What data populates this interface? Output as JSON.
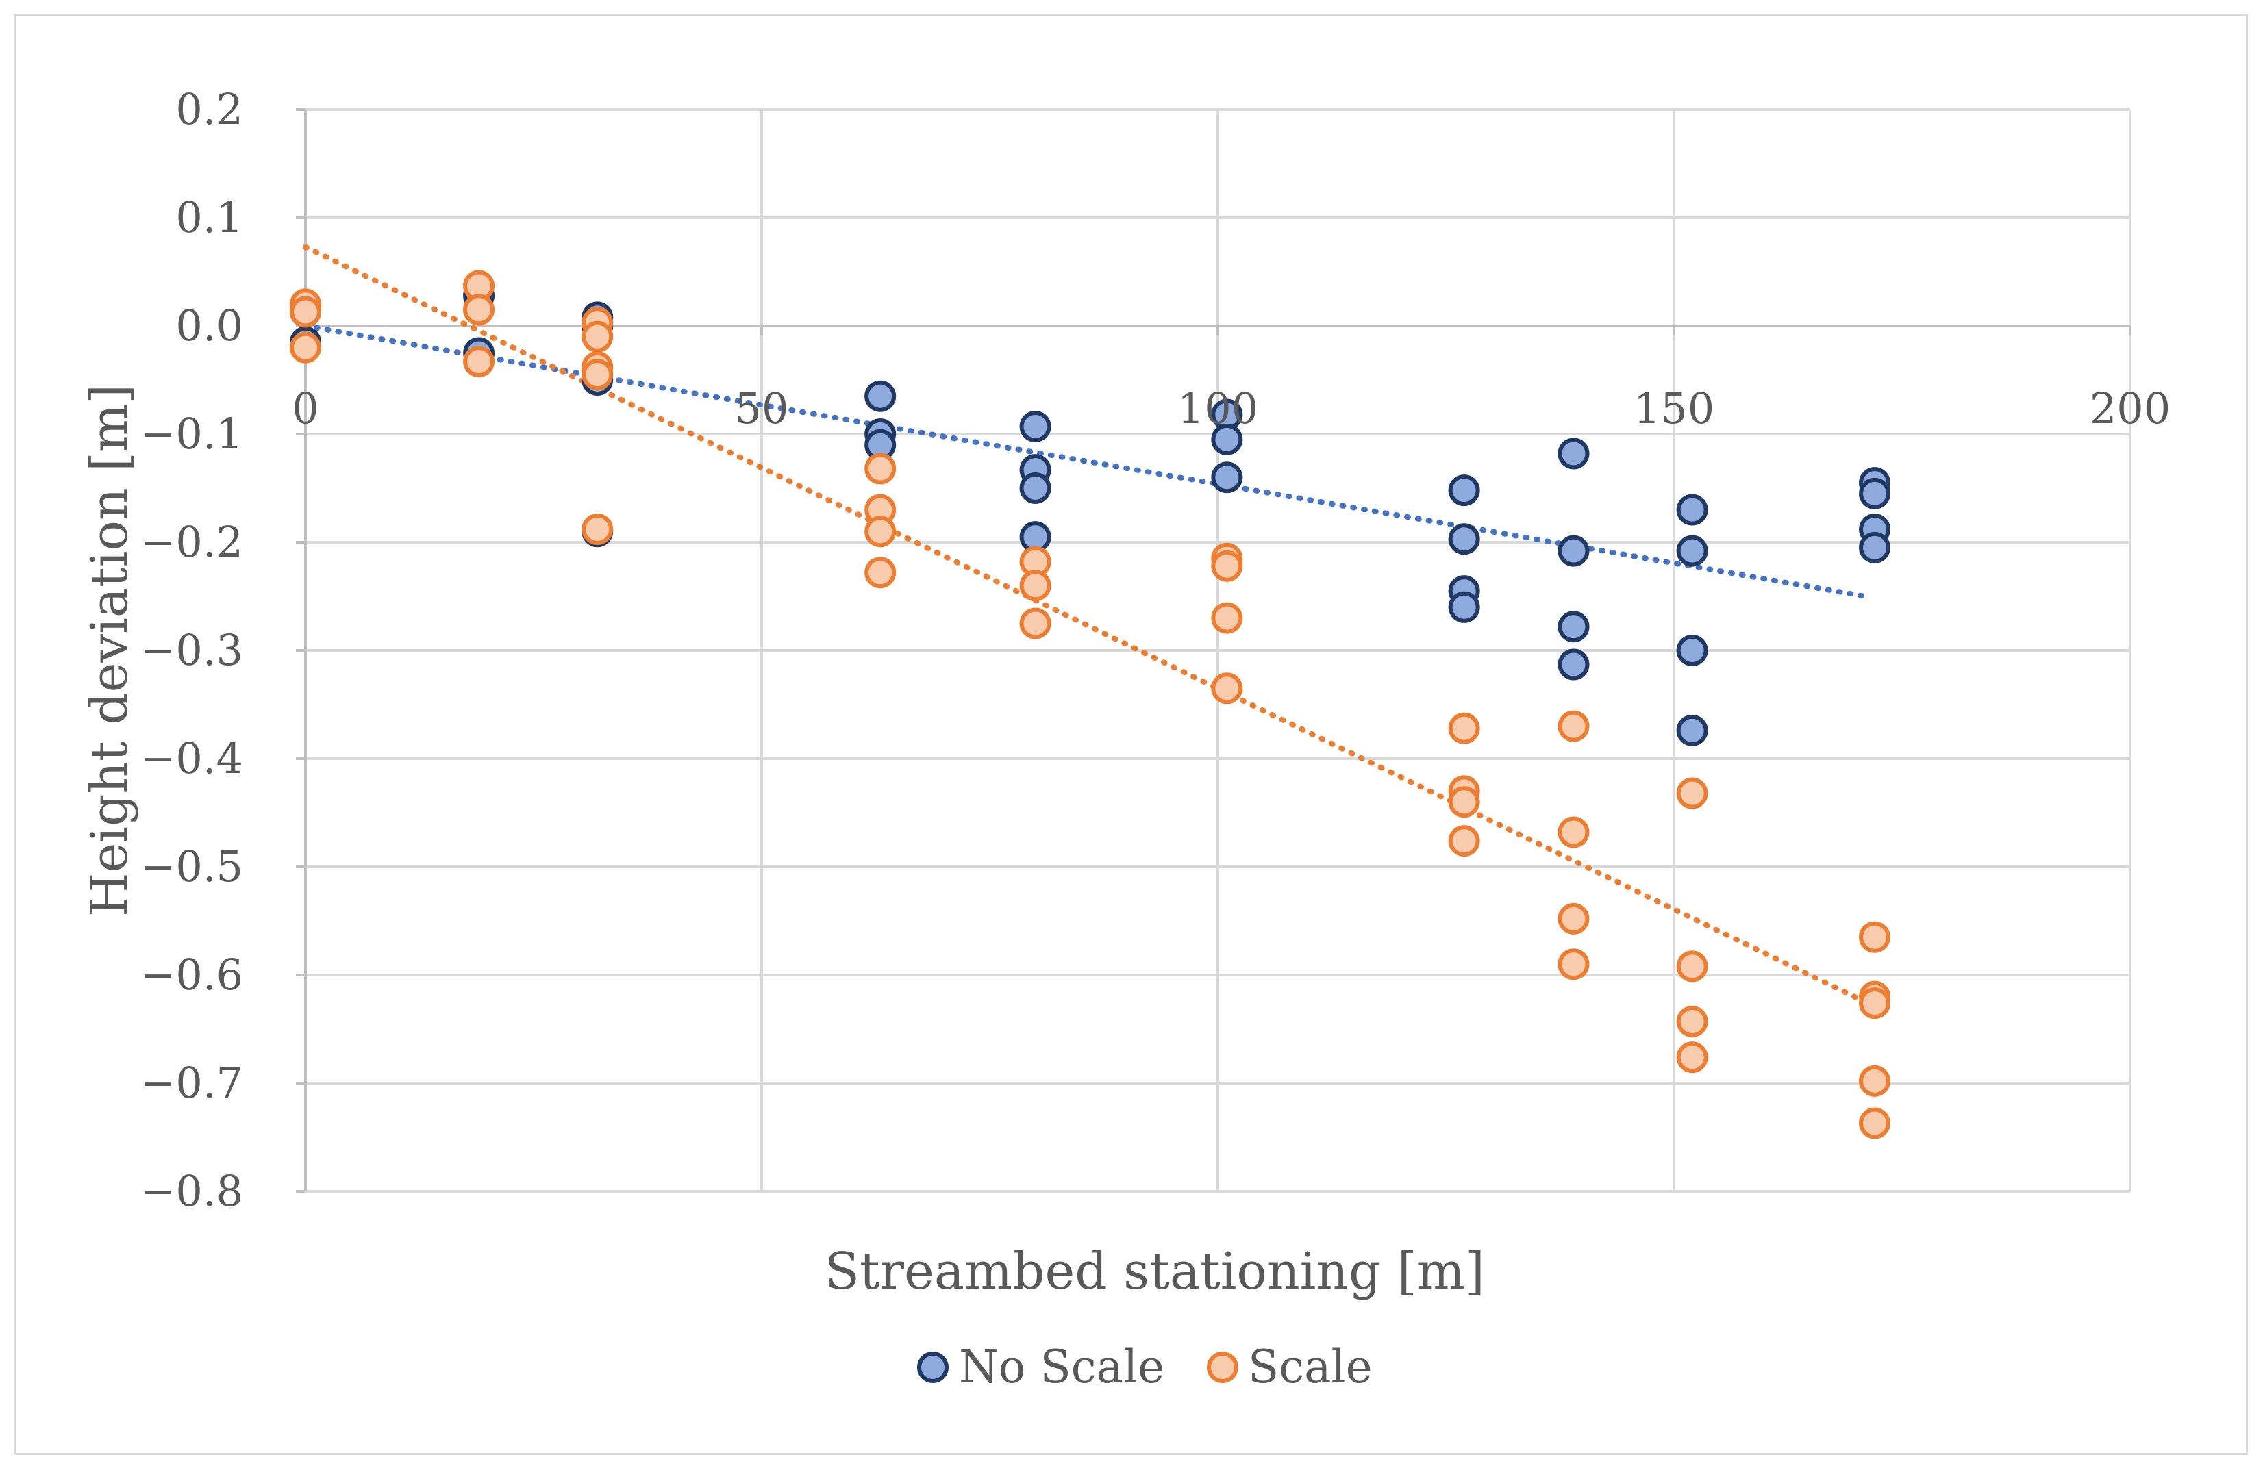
{
  "chart_data": {
    "type": "scatter",
    "title": "",
    "xlabel": "Streambed stationing [m]",
    "ylabel": "Height deviation [m]",
    "xlim": [
      0,
      200
    ],
    "ylim": [
      -0.8,
      0.2
    ],
    "x_ticks": [
      "0",
      "50",
      "100",
      "150",
      "200"
    ],
    "x_tick_values": [
      0,
      50,
      100,
      150,
      200
    ],
    "y_ticks": [
      "0.2",
      "0.1",
      "0.0",
      "−0.1",
      "−0.2",
      "−0.3",
      "−0.4",
      "−0.5",
      "−0.6",
      "−0.7",
      "−0.8"
    ],
    "y_tick_values": [
      0.2,
      0.1,
      0.0,
      -0.1,
      -0.2,
      -0.3,
      -0.4,
      -0.5,
      -0.6,
      -0.7,
      -0.8
    ],
    "grid": true,
    "legend_position": "bottom",
    "series": [
      {
        "name": "No Scale",
        "color": "#8faadc",
        "edge_color": "#1f3864",
        "trendline_color": "#4472c4",
        "trendline": {
          "x": [
            0,
            171
          ],
          "y": [
            0.0,
            -0.25
          ]
        },
        "points": [
          [
            0,
            -0.015
          ],
          [
            0,
            0.013
          ],
          [
            19,
            0.028
          ],
          [
            19,
            -0.025
          ],
          [
            32,
            0.008
          ],
          [
            32,
            0.0
          ],
          [
            32,
            -0.05
          ],
          [
            32,
            -0.19
          ],
          [
            63,
            -0.065
          ],
          [
            63,
            -0.1
          ],
          [
            63,
            -0.11
          ],
          [
            80,
            -0.093
          ],
          [
            80,
            -0.133
          ],
          [
            80,
            -0.15
          ],
          [
            80,
            -0.195
          ],
          [
            101,
            -0.082
          ],
          [
            101,
            -0.105
          ],
          [
            101,
            -0.14
          ],
          [
            127,
            -0.152
          ],
          [
            127,
            -0.197
          ],
          [
            127,
            -0.245
          ],
          [
            127,
            -0.26
          ],
          [
            139,
            -0.118
          ],
          [
            139,
            -0.208
          ],
          [
            139,
            -0.278
          ],
          [
            139,
            -0.313
          ],
          [
            152,
            -0.17
          ],
          [
            152,
            -0.208
          ],
          [
            152,
            -0.3
          ],
          [
            152,
            -0.374
          ],
          [
            172,
            -0.145
          ],
          [
            172,
            -0.155
          ],
          [
            172,
            -0.188
          ],
          [
            172,
            -0.205
          ]
        ]
      },
      {
        "name": "Scale",
        "color": "#f8cbad",
        "edge_color": "#ed7d31",
        "trendline_color": "#ed7d31",
        "trendline": {
          "x": [
            0,
            171
          ],
          "y": [
            0.073,
            -0.625
          ]
        },
        "points": [
          [
            0,
            0.02
          ],
          [
            0,
            0.013
          ],
          [
            0,
            -0.02
          ],
          [
            19,
            0.037
          ],
          [
            19,
            0.015
          ],
          [
            19,
            -0.033
          ],
          [
            32,
            0.003
          ],
          [
            32,
            -0.01
          ],
          [
            32,
            -0.038
          ],
          [
            32,
            -0.045
          ],
          [
            32,
            -0.188
          ],
          [
            63,
            -0.132
          ],
          [
            63,
            -0.17
          ],
          [
            63,
            -0.19
          ],
          [
            63,
            -0.228
          ],
          [
            80,
            -0.218
          ],
          [
            80,
            -0.24
          ],
          [
            80,
            -0.275
          ],
          [
            101,
            -0.215
          ],
          [
            101,
            -0.222
          ],
          [
            101,
            -0.27
          ],
          [
            101,
            -0.335
          ],
          [
            127,
            -0.372
          ],
          [
            127,
            -0.43
          ],
          [
            127,
            -0.44
          ],
          [
            127,
            -0.476
          ],
          [
            139,
            -0.37
          ],
          [
            139,
            -0.468
          ],
          [
            139,
            -0.548
          ],
          [
            139,
            -0.59
          ],
          [
            152,
            -0.432
          ],
          [
            152,
            -0.592
          ],
          [
            152,
            -0.643
          ],
          [
            152,
            -0.676
          ],
          [
            172,
            -0.565
          ],
          [
            172,
            -0.62
          ],
          [
            172,
            -0.626
          ],
          [
            172,
            -0.698
          ],
          [
            172,
            -0.737
          ]
        ]
      }
    ]
  }
}
